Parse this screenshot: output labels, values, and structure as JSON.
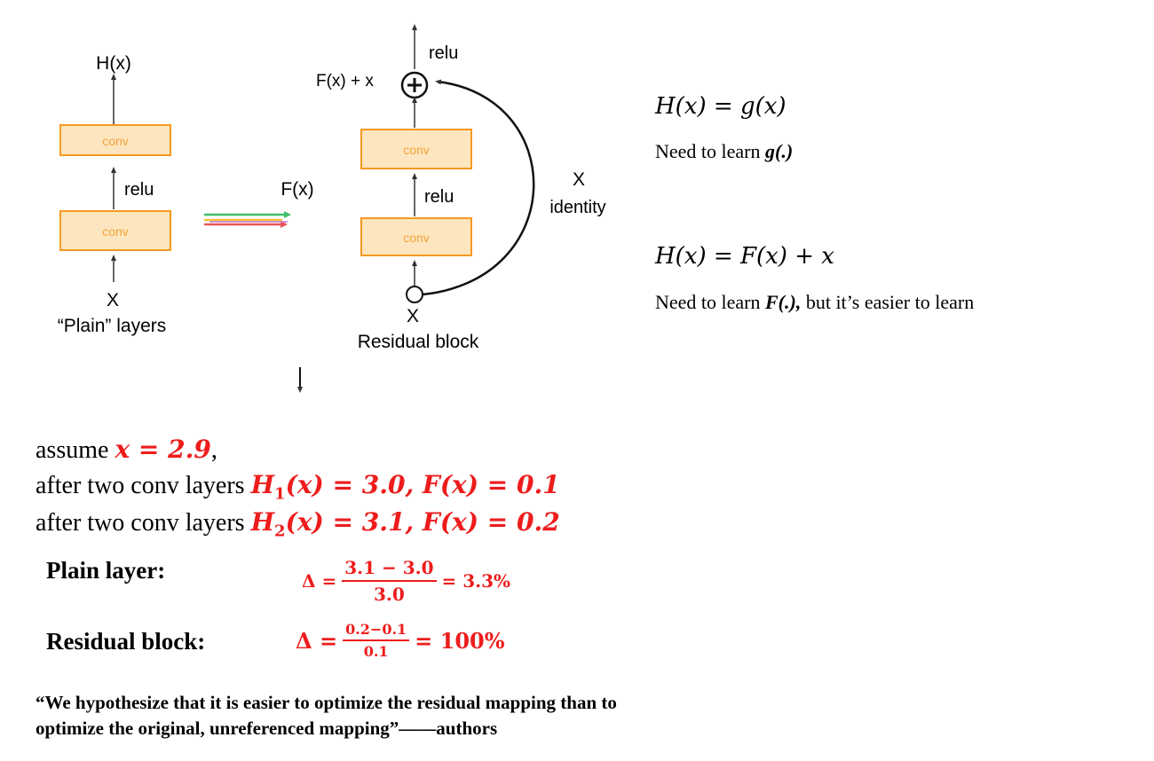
{
  "plain": {
    "output_label": "H(x)",
    "conv_top": "conv",
    "conv_bottom": "conv",
    "relu": "relu",
    "input_label": "X",
    "caption": "“Plain” layers"
  },
  "transition": {
    "label": "F(x)"
  },
  "residual": {
    "relu_top": "relu",
    "sum_label": "F(x) + x",
    "conv_top": "conv",
    "conv_bottom": "conv",
    "relu_mid": "relu",
    "skip_label": "X",
    "skip_sub": "identity",
    "input_label": "X",
    "caption": "Residual block"
  },
  "equations": {
    "plain_eq": "H(x) = g(x)",
    "plain_note_prefix": "Need to learn ",
    "plain_note_bold": "g(.)",
    "residual_eq": "H(x) = F(x) + x",
    "residual_note_prefix": "Need to learn ",
    "residual_note_bold": "F(.),",
    "residual_note_suffix": " but it’s easier to learn"
  },
  "example": {
    "assume_prefix": "assume ",
    "assume_value": "x = 2.9",
    "assume_suffix": ",",
    "line1_prefix": "after two conv layers ",
    "line1_h": "H",
    "line1_sub": "1",
    "line1_rest": "(x) = 3.0, F(x) = 0.1",
    "line2_prefix": "after two conv layers ",
    "line2_h": "H",
    "line2_sub": "2",
    "line2_rest": "(x) = 3.1, F(x) = 0.2"
  },
  "plain_layer": {
    "heading": "Plain layer:",
    "delta": "Δ =",
    "numerator": "3.1 − 3.0",
    "denominator": "3.0",
    "result": "= 3.3%"
  },
  "residual_layer": {
    "heading": "Residual block:",
    "delta": "Δ =",
    "numerator": "0.2−0.1",
    "denominator": "0.1",
    "result": "= 100%"
  },
  "quote": {
    "line1": "“We hypothesize that it is easier to optimize the residual mapping than to",
    "line2": "optimize the original, unreferenced mapping”——authors"
  },
  "colors": {
    "conv_fill": "#fde5bf",
    "conv_border": "#f59a22",
    "conv_text": "#f2a33a",
    "red": "#ee1c1c"
  }
}
